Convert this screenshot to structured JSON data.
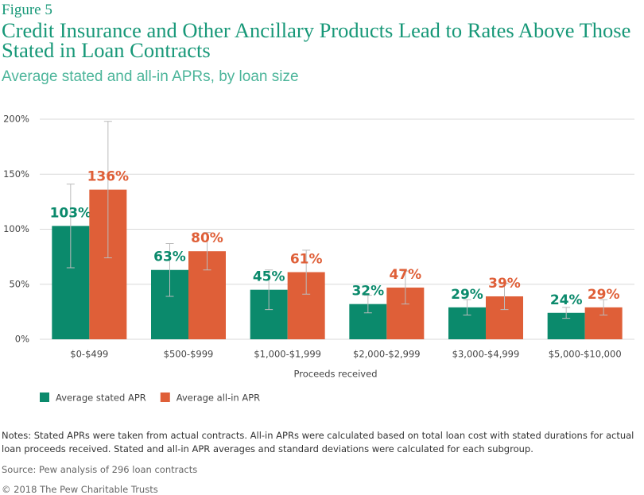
{
  "figure_label": "Figure 5",
  "chart_data": {
    "type": "bar",
    "title": "Credit Insurance and Other Ancillary Products Lead to Rates Above Those Stated in Loan Contracts",
    "subtitle": "Average stated and all-in APRs, by loan size",
    "x_label": "Proceeds received",
    "categories": [
      "$0-$499",
      "$500-$999",
      "$1,000-$1,999",
      "$2,000-$2,999",
      "$3,000-$4,999",
      "$5,000-$10,000"
    ],
    "series": [
      {
        "name": "Average stated APR",
        "color": "#0b8a6c",
        "values": [
          103,
          63,
          45,
          32,
          29,
          24
        ],
        "value_labels": [
          "103%",
          "63%",
          "45%",
          "32%",
          "29%",
          "24%"
        ],
        "errors": [
          38,
          24,
          18,
          8,
          7,
          5
        ]
      },
      {
        "name": "Average all-in APR",
        "color": "#df5f38",
        "values": [
          136,
          80,
          61,
          47,
          39,
          29
        ],
        "value_labels": [
          "136%",
          "80%",
          "61%",
          "47%",
          "39%",
          "29%"
        ],
        "errors": [
          62,
          17,
          20,
          15,
          12,
          7
        ]
      }
    ],
    "ylim": [
      0,
      200
    ],
    "yticks": [
      {
        "value": 0,
        "label": "0%"
      },
      {
        "value": 50,
        "label": "50%"
      },
      {
        "value": 100,
        "label": "100%"
      },
      {
        "value": 150,
        "label": "150%"
      },
      {
        "value": 200,
        "label": "200%"
      }
    ],
    "grid": true
  },
  "notes": "Notes: Stated APRs were taken from actual contracts. All-in APRs were calculated based on total loan cost with stated durations for actual loan proceeds received. Stated and all-in APR averages and standard deviations were calculated for each subgroup.",
  "source": "Source: Pew analysis of 296 loan contracts",
  "copyright": "© 2018 The Pew Charitable Trusts"
}
